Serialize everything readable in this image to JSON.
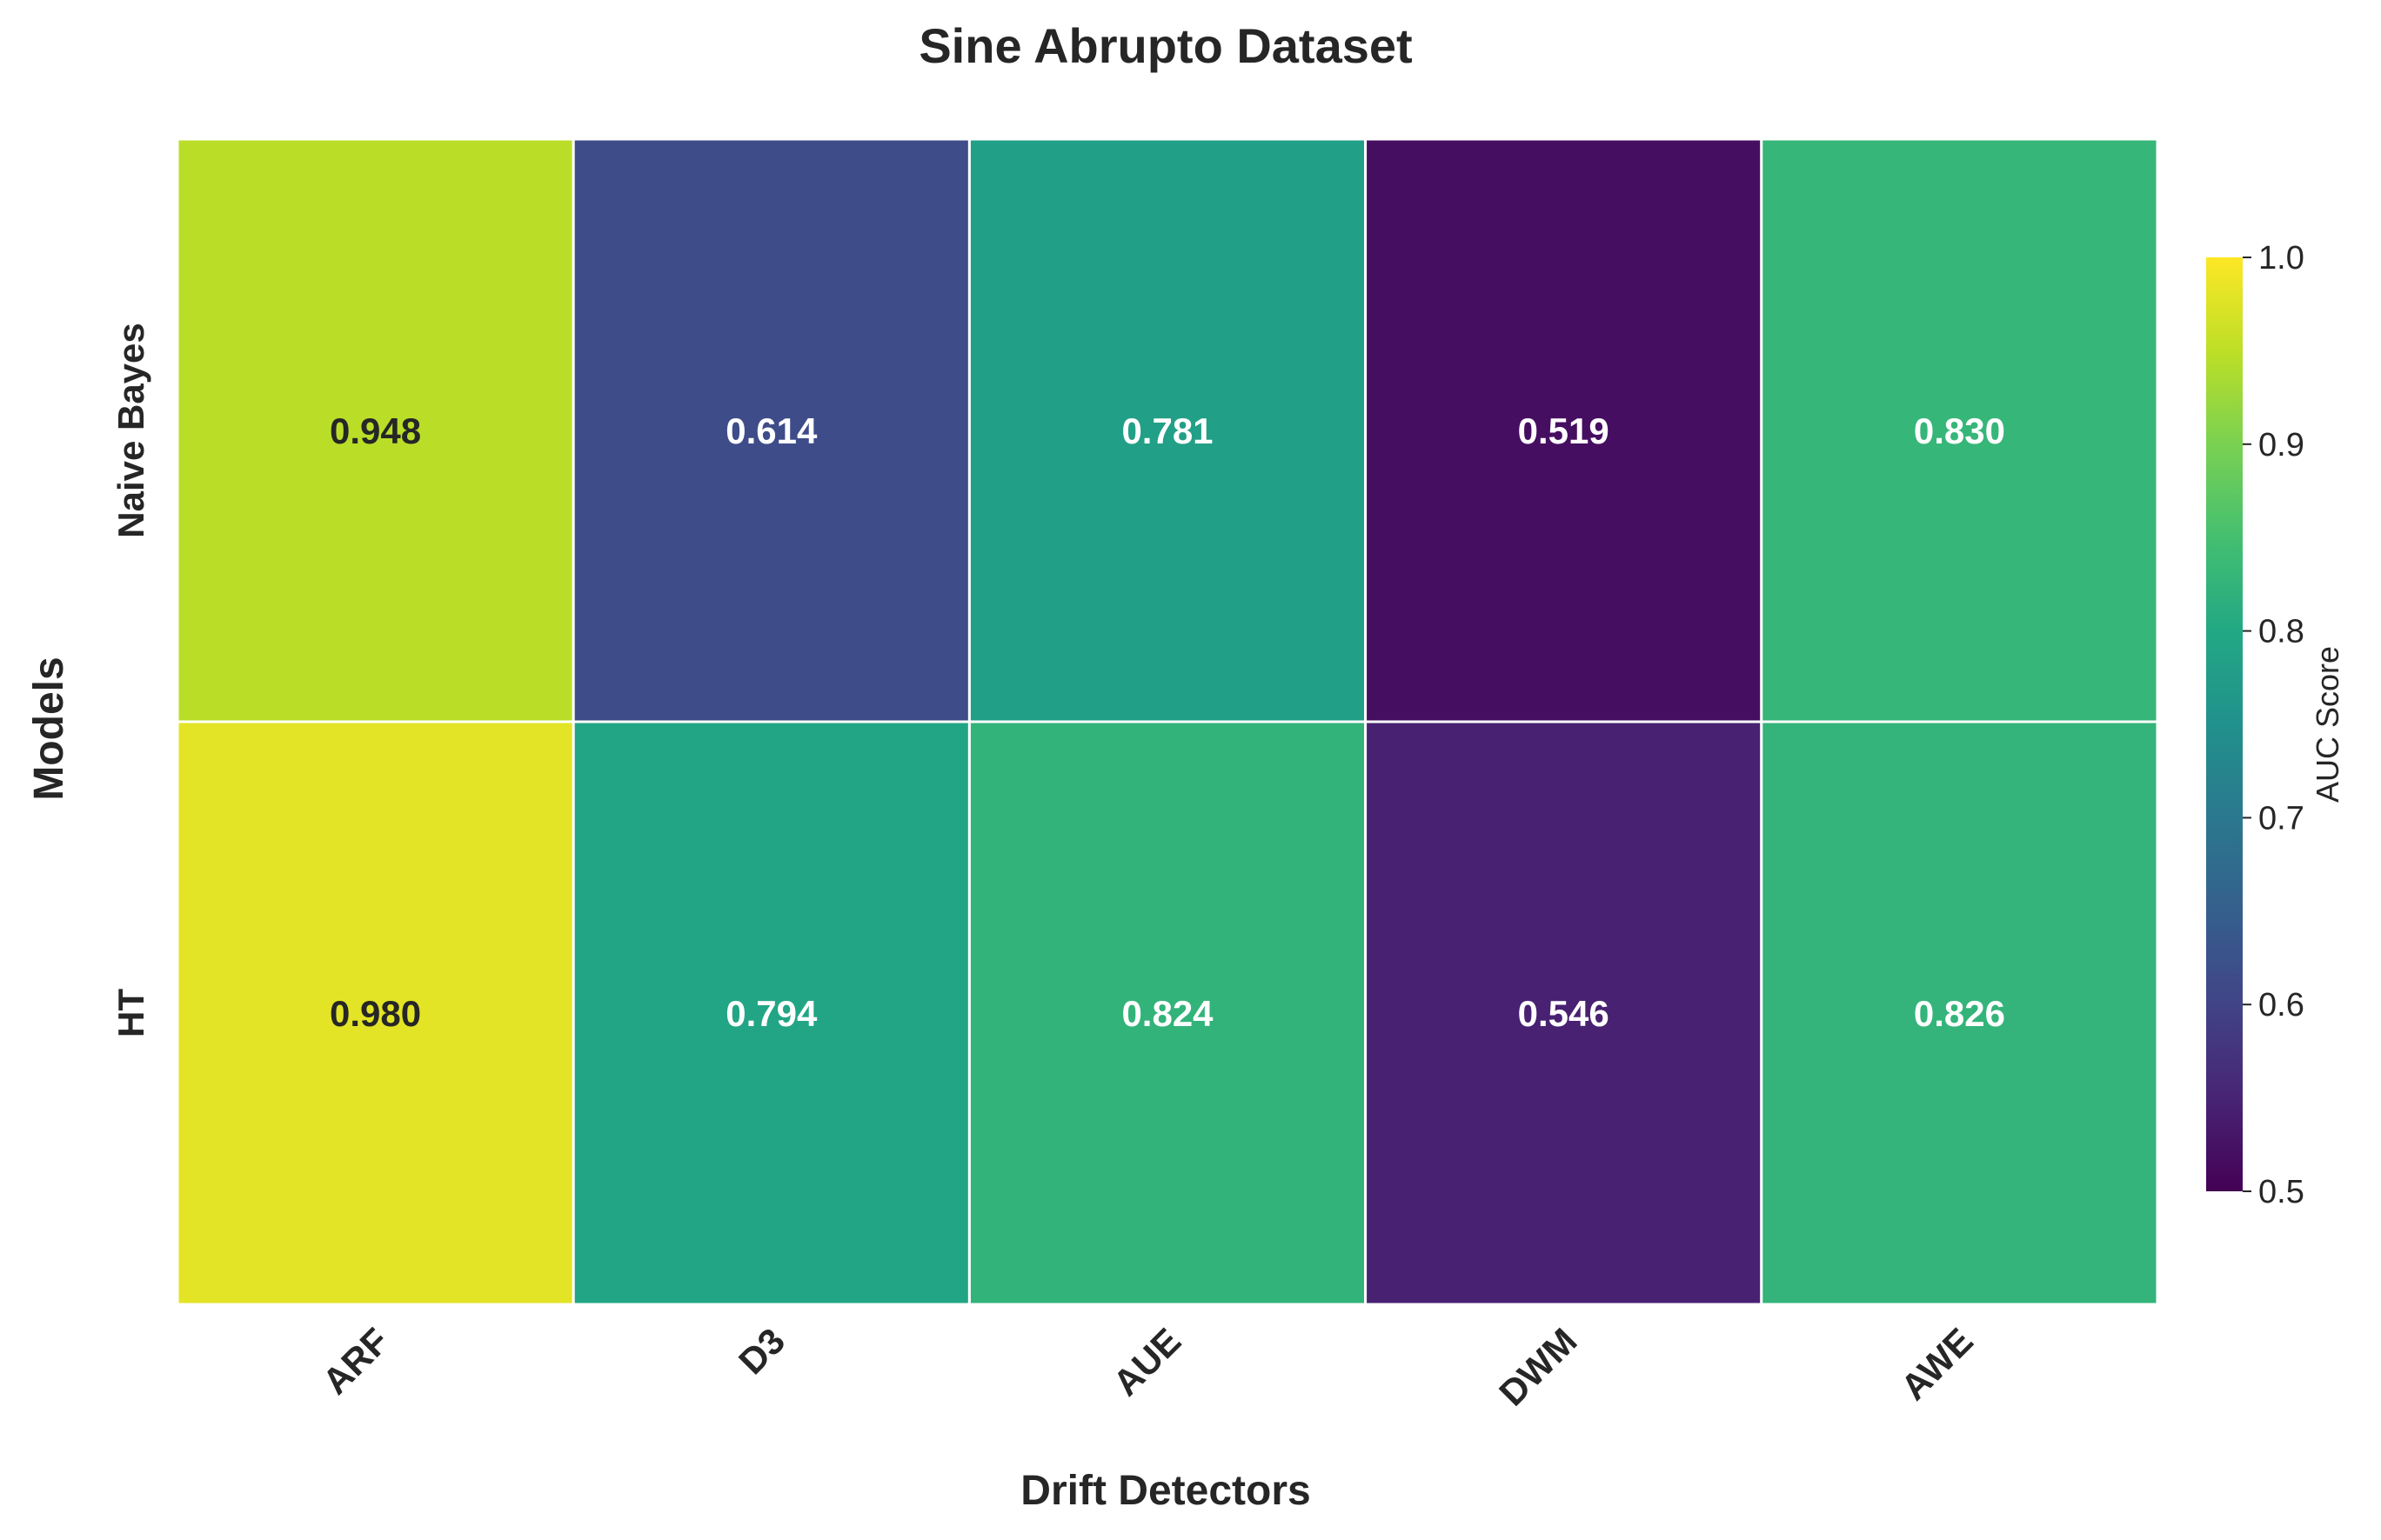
{
  "chart_data": {
    "type": "heatmap",
    "title": "Sine Abrupto Dataset",
    "xlabel": "Drift Detectors",
    "ylabel": "Models",
    "x_categories": [
      "ARF",
      "D3",
      "AUE",
      "DWM",
      "AWE"
    ],
    "y_categories": [
      "Naive Bayes",
      "HT"
    ],
    "values": [
      [
        0.948,
        0.614,
        0.781,
        0.519,
        0.83
      ],
      [
        0.98,
        0.794,
        0.824,
        0.546,
        0.826
      ]
    ],
    "value_labels": [
      [
        "0.948",
        "0.614",
        "0.781",
        "0.519",
        "0.830"
      ],
      [
        "0.980",
        "0.794",
        "0.824",
        "0.546",
        "0.826"
      ]
    ],
    "colormap": "viridis",
    "vmin": 0.5,
    "vmax": 1.0,
    "colorbar": {
      "label": "AUC Score",
      "ticks": [
        0.5,
        0.6,
        0.7,
        0.8,
        0.9,
        1.0
      ],
      "tick_labels": [
        "0.5",
        "0.6",
        "0.7",
        "0.8",
        "0.9",
        "1.0"
      ]
    },
    "grid_line_color": "#ffffff"
  }
}
